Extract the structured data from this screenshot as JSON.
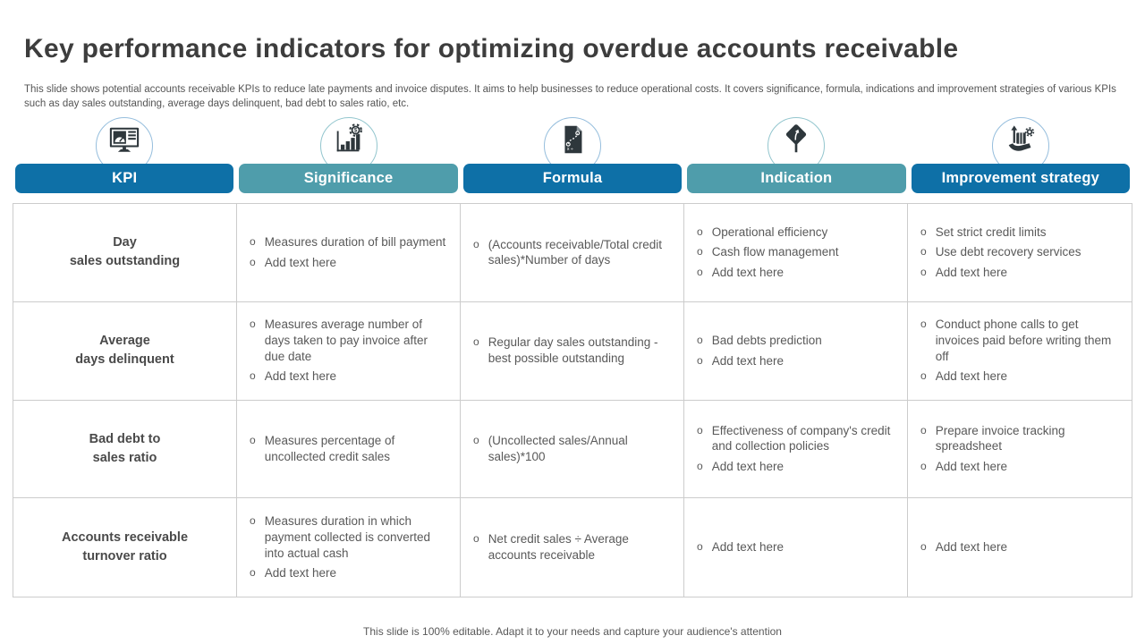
{
  "slide": {
    "title": "Key performance indicators for optimizing overdue accounts receivable",
    "subtitle": "This slide shows potential accounts receivable KPIs to reduce late payments and invoice disputes. It aims to help businesses to reduce operational costs. It covers significance, formula, indications and improvement strategies of various KPIs such as day sales outstanding, average days delinquent, bad debt to sales ratio, etc.",
    "footer": "This slide is 100% editable. Adapt it to your needs and capture your audience's attention"
  },
  "colors": {
    "header_blue": "#0e70a7",
    "header_teal": "#4f9dab",
    "circle_border_blue": "#96bedd",
    "circle_border_teal": "#93c6ce",
    "icon_dark": "#2e373c",
    "table_border": "#cccccc",
    "kpi_text": "#4a4a4a",
    "body_text": "#595959"
  },
  "table": {
    "columns": [
      {
        "label": "KPI",
        "icon": "dashboard-monitor-icon",
        "theme": "blue"
      },
      {
        "label": "Significance",
        "icon": "bar-chart-gear-dollar-icon",
        "theme": "teal"
      },
      {
        "label": "Formula",
        "icon": "formula-document-icon",
        "theme": "blue"
      },
      {
        "label": "Indication",
        "icon": "road-sign-arrow-icon",
        "theme": "teal"
      },
      {
        "label": "Improvement strategy",
        "icon": "hand-money-growth-icon",
        "theme": "blue"
      }
    ],
    "rows": [
      {
        "kpi_lines": [
          "Day",
          "sales outstanding"
        ],
        "significance": [
          "Measures duration of bill payment",
          "Add text here"
        ],
        "formula": [
          "(Accounts receivable/Total credit sales)*Number of days"
        ],
        "indication": [
          "Operational efficiency",
          "Cash flow management",
          "Add text here"
        ],
        "improvement_strategy": [
          "Set strict credit limits",
          "Use debt recovery services",
          "Add text here"
        ]
      },
      {
        "kpi_lines": [
          "Average",
          "days delinquent"
        ],
        "significance": [
          "Measures average number of days taken to pay invoice after due date",
          "Add text here"
        ],
        "formula": [
          "Regular day sales outstanding - best possible outstanding"
        ],
        "indication": [
          "Bad debts prediction",
          "Add text here"
        ],
        "improvement_strategy": [
          "Conduct phone calls to get invoices paid before writing them off",
          "Add text here"
        ]
      },
      {
        "kpi_lines": [
          "Bad debt to",
          "sales ratio"
        ],
        "significance": [
          "Measures percentage of uncollected credit sales"
        ],
        "formula": [
          "(Uncollected sales/Annual sales)*100"
        ],
        "indication": [
          "Effectiveness of company's credit and collection policies",
          "Add text here"
        ],
        "improvement_strategy": [
          "Prepare invoice tracking spreadsheet",
          "Add text here"
        ]
      },
      {
        "kpi_lines": [
          "Accounts receivable",
          "turnover ratio"
        ],
        "significance": [
          "Measures duration in which payment collected is converted into actual cash",
          "Add text here"
        ],
        "formula": [
          "Net credit sales ÷ Average accounts receivable"
        ],
        "indication": [
          "Add text here"
        ],
        "improvement_strategy": [
          "Add text here"
        ]
      }
    ]
  }
}
